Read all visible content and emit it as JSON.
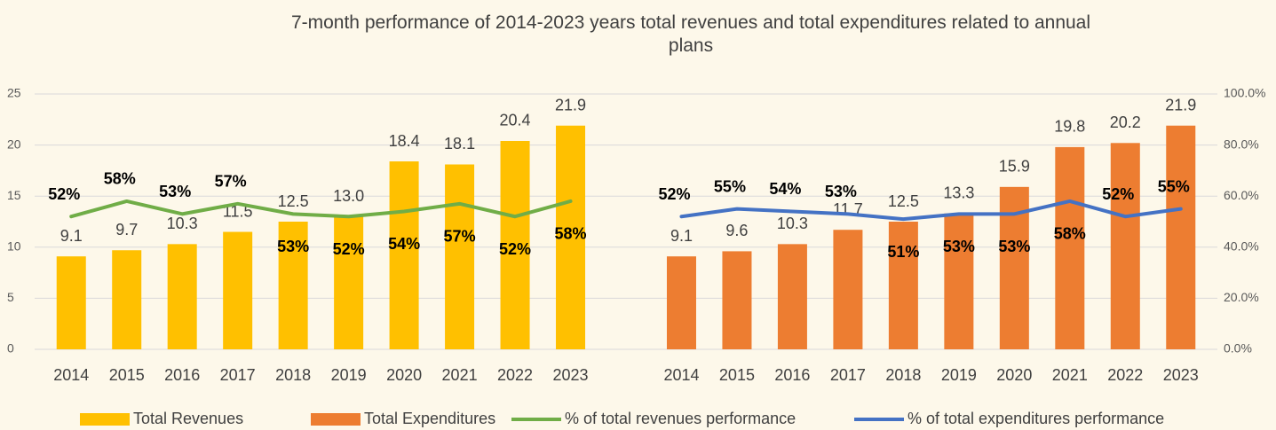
{
  "chart_data": {
    "type": "bar",
    "title": "7-month performance of 2014-2023 years total revenues and total expenditures related to annual plans",
    "categories": [
      "2014",
      "2015",
      "2016",
      "2017",
      "2018",
      "2019",
      "2020",
      "2021",
      "2022",
      "2023",
      null,
      "2014",
      "2015",
      "2016",
      "2017",
      "2018",
      "2019",
      "2020",
      "2021",
      "2022",
      "2023"
    ],
    "series": [
      {
        "name": "Total Revenues",
        "type": "bar",
        "color": "#FFC000",
        "values": [
          9.1,
          9.7,
          10.3,
          11.5,
          12.5,
          13.0,
          18.4,
          18.1,
          20.4,
          21.9,
          null,
          null,
          null,
          null,
          null,
          null,
          null,
          null,
          null,
          null,
          null
        ],
        "value_labels": [
          "9.1",
          "9.7",
          "10.3",
          "11.5",
          "12.5",
          "13.0",
          "18.4",
          "18.1",
          "20.4",
          "21.9",
          null,
          null,
          null,
          null,
          null,
          null,
          null,
          null,
          null,
          null,
          null
        ]
      },
      {
        "name": "Total Expenditures",
        "type": "bar",
        "color": "#ED7D31",
        "values": [
          null,
          null,
          null,
          null,
          null,
          null,
          null,
          null,
          null,
          null,
          null,
          9.1,
          9.6,
          10.3,
          11.7,
          12.5,
          13.3,
          15.9,
          19.8,
          20.2,
          21.9
        ],
        "value_labels": [
          null,
          null,
          null,
          null,
          null,
          null,
          null,
          null,
          null,
          null,
          null,
          "9.1",
          "9.6",
          "10.3",
          "11.7",
          "12.5",
          "13.3",
          "15.9",
          "19.8",
          "20.2",
          "21.9"
        ]
      },
      {
        "name": "% of total revenues performance",
        "type": "line",
        "axis": "y2",
        "color": "#70AD47",
        "values": [
          52,
          58,
          53,
          57,
          53,
          52,
          54,
          57,
          52,
          58,
          null,
          null,
          null,
          null,
          null,
          null,
          null,
          null,
          null,
          null,
          null
        ],
        "value_labels": [
          "52%",
          "58%",
          "53%",
          "57%",
          "53%",
          "52%",
          "54%",
          "57%",
          "52%",
          "58%",
          null,
          null,
          null,
          null,
          null,
          null,
          null,
          null,
          null,
          null,
          null
        ]
      },
      {
        "name": "% of total expenditures performance",
        "type": "line",
        "axis": "y2",
        "color": "#4472C4",
        "values": [
          null,
          null,
          null,
          null,
          null,
          null,
          null,
          null,
          null,
          null,
          null,
          52,
          55,
          54,
          53,
          51,
          53,
          53,
          58,
          52,
          55
        ],
        "value_labels": [
          null,
          null,
          null,
          null,
          null,
          null,
          null,
          null,
          null,
          null,
          null,
          "52%",
          "55%",
          "54%",
          "53%",
          "51%",
          "53%",
          "53%",
          "58%",
          "52%",
          "55%"
        ]
      }
    ],
    "ylim": [
      0,
      25
    ],
    "yticks": [
      0,
      5,
      10,
      15,
      20,
      25
    ],
    "y2lim": [
      0,
      100
    ],
    "y2ticks": [
      {
        "value": 0,
        "label": "0.0%"
      },
      {
        "value": 20,
        "label": "20.0%"
      },
      {
        "value": 40,
        "label": "40.0%"
      },
      {
        "value": 60,
        "label": "60.0%"
      },
      {
        "value": 80,
        "label": "80.0%"
      },
      {
        "value": 100,
        "label": "100.0%"
      }
    ],
    "grid": true,
    "legend": "bottom"
  }
}
